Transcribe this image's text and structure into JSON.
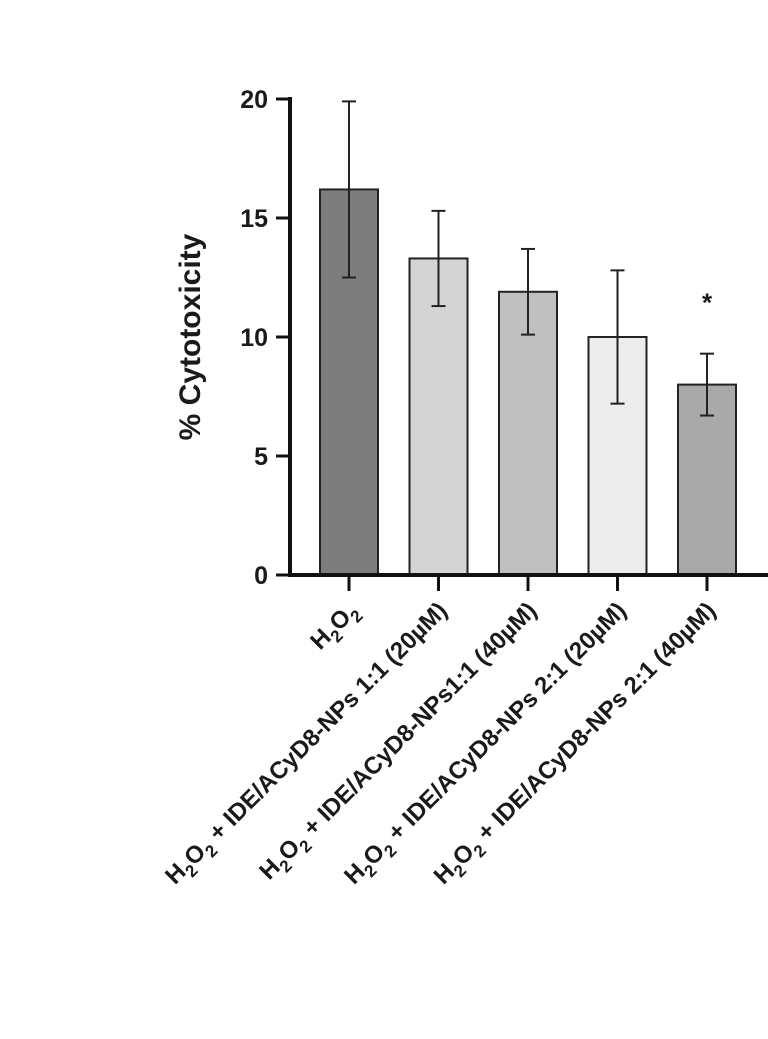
{
  "chart_data": {
    "type": "bar",
    "ylabel": "% Cytotoxicity",
    "ylim": [
      0,
      20
    ],
    "yticks": [
      0,
      5,
      10,
      15,
      20
    ],
    "grid": false,
    "categories": [
      {
        "main": "H",
        "sub": "2",
        "main2": "O",
        "sub2": "2",
        "rest": ""
      },
      {
        "main": "H",
        "sub": "2",
        "main2": "O",
        "sub2": "2",
        "rest": " + IDE/ACyD8-NPs 1:1 (20µM)"
      },
      {
        "main": "H",
        "sub": "2",
        "main2": "O",
        "sub2": "2",
        "rest": " + IDE/ACyD8-NPs1:1 (40µM)"
      },
      {
        "main": "H",
        "sub": "2",
        "main2": "O",
        "sub2": "2",
        "rest": " + IDE/ACyD8-NPs 2:1 (20µM)"
      },
      {
        "main": "H",
        "sub": "2",
        "main2": "O",
        "sub2": "2",
        "rest": " + IDE/ACyD8-NPs 2:1 (40µM)"
      }
    ],
    "values": [
      16.2,
      13.3,
      11.9,
      10.0,
      8.0
    ],
    "errors": [
      3.7,
      2.0,
      1.8,
      2.8,
      1.3
    ],
    "colors": [
      "#7d7d7d",
      "#d4d4d4",
      "#c0c0c0",
      "#ececec",
      "#a9a9a9"
    ],
    "significance": [
      "",
      "",
      "",
      "",
      "*"
    ]
  }
}
